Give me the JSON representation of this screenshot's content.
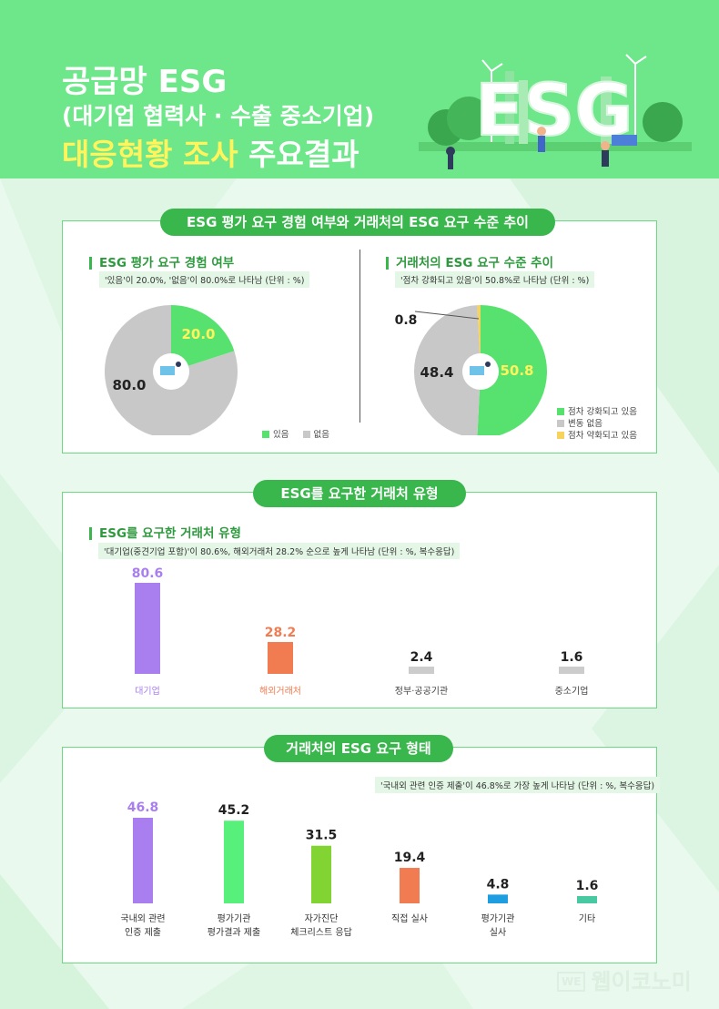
{
  "header": {
    "title_line1": "공급망 ESG",
    "title_line2": "(대기업 협력사 · 수출 중소기업)",
    "title_line3_highlight": "대응현황 조사",
    "title_line3_rest": " 주요결과",
    "illustration_text": "ESG"
  },
  "section1": {
    "pill": "ESG 평가 요구 경험 여부와 거래처의 ESG 요구 수준 추이",
    "left_title": "ESG 평가 요구 경험 여부",
    "left_note": "'있음'이 20.0%, '없음'이 80.0%로 나타남 (단위 : %)",
    "right_title": "거래처의 ESG 요구 수준 추이",
    "right_note": "'점차 강화되고 있음'이 50.8%로 나타남 (단위 : %)"
  },
  "section2": {
    "pill": "ESG를 요구한 거래처 유형",
    "title": "ESG를 요구한 거래처 유형",
    "note": "'대기업(중견기업 포함)'이 80.6%, 해외거래처 28.2% 순으로 높게 나타남 (단위 : %, 복수응답)"
  },
  "section3": {
    "pill": "거래처의 ESG 요구 형태",
    "note": "'국내외 관련 인증 제출'이 46.8%로 가장 높게 나타남 (단위 : %, 복수응답)"
  },
  "watermark": {
    "box": "WE",
    "text": "웹이코노미"
  },
  "colors": {
    "header_bg": "#6ee68a",
    "green": "#57e26f",
    "gray": "#c8c8c8",
    "yellow": "#f7d25c",
    "purple": "#a97ff0",
    "orange": "#f27c52",
    "green2": "#82d432",
    "blue": "#1e9ee0",
    "teal": "#48c9a2"
  },
  "chart_data": [
    {
      "type": "pie",
      "labels": [
        "있음",
        "없음"
      ],
      "values": [
        20.0,
        80.0
      ],
      "colors": [
        "#57e26f",
        "#c8c8c8"
      ],
      "legend": [
        "있음",
        "없음"
      ]
    },
    {
      "type": "pie",
      "labels": [
        "점차 강화되고 있음",
        "변동 없음",
        "점차 약화되고 있음"
      ],
      "values": [
        50.8,
        48.4,
        0.8
      ],
      "colors": [
        "#57e26f",
        "#c8c8c8",
        "#f7d25c"
      ],
      "legend": [
        "점차 강화되고 있음",
        "변동 없음",
        "점차 약화되고 있음"
      ]
    },
    {
      "type": "bar",
      "categories": [
        "대기업",
        "해외거래처",
        "정부·공공기관",
        "중소기업"
      ],
      "values": [
        80.6,
        28.2,
        2.4,
        1.6
      ],
      "bar_colors": [
        "#a97ff0",
        "#f27c52",
        "#cccccc",
        "#cccccc"
      ],
      "label_colors": [
        "#a97ff0",
        "#f27c52",
        "#222222",
        "#222222"
      ],
      "category_colors": [
        "#a97ff0",
        "#f27c52",
        "#444444",
        "#444444"
      ]
    },
    {
      "type": "bar",
      "categories": [
        "국내외 관련 인증 제출",
        "평가기관 평가결과 제출",
        "자가진단 체크리스트 응답",
        "직접 실사",
        "평가기관 실사",
        "기타"
      ],
      "category_lines": [
        [
          "국내외 관련",
          "인증 제출"
        ],
        [
          "평가기관",
          "평가결과 제출"
        ],
        [
          "자가진단",
          "체크리스트 응답"
        ],
        [
          "직접 실사"
        ],
        [
          "평가기관",
          "실사"
        ],
        [
          "기타"
        ]
      ],
      "values": [
        46.8,
        45.2,
        31.5,
        19.4,
        4.8,
        1.6
      ],
      "bar_colors": [
        "#a97ff0",
        "#57f07a",
        "#82d432",
        "#f27c52",
        "#1e9ee0",
        "#48c9a2"
      ],
      "label_colors": [
        "#a97ff0",
        "#222222",
        "#222222",
        "#222222",
        "#222222",
        "#222222"
      ]
    }
  ]
}
